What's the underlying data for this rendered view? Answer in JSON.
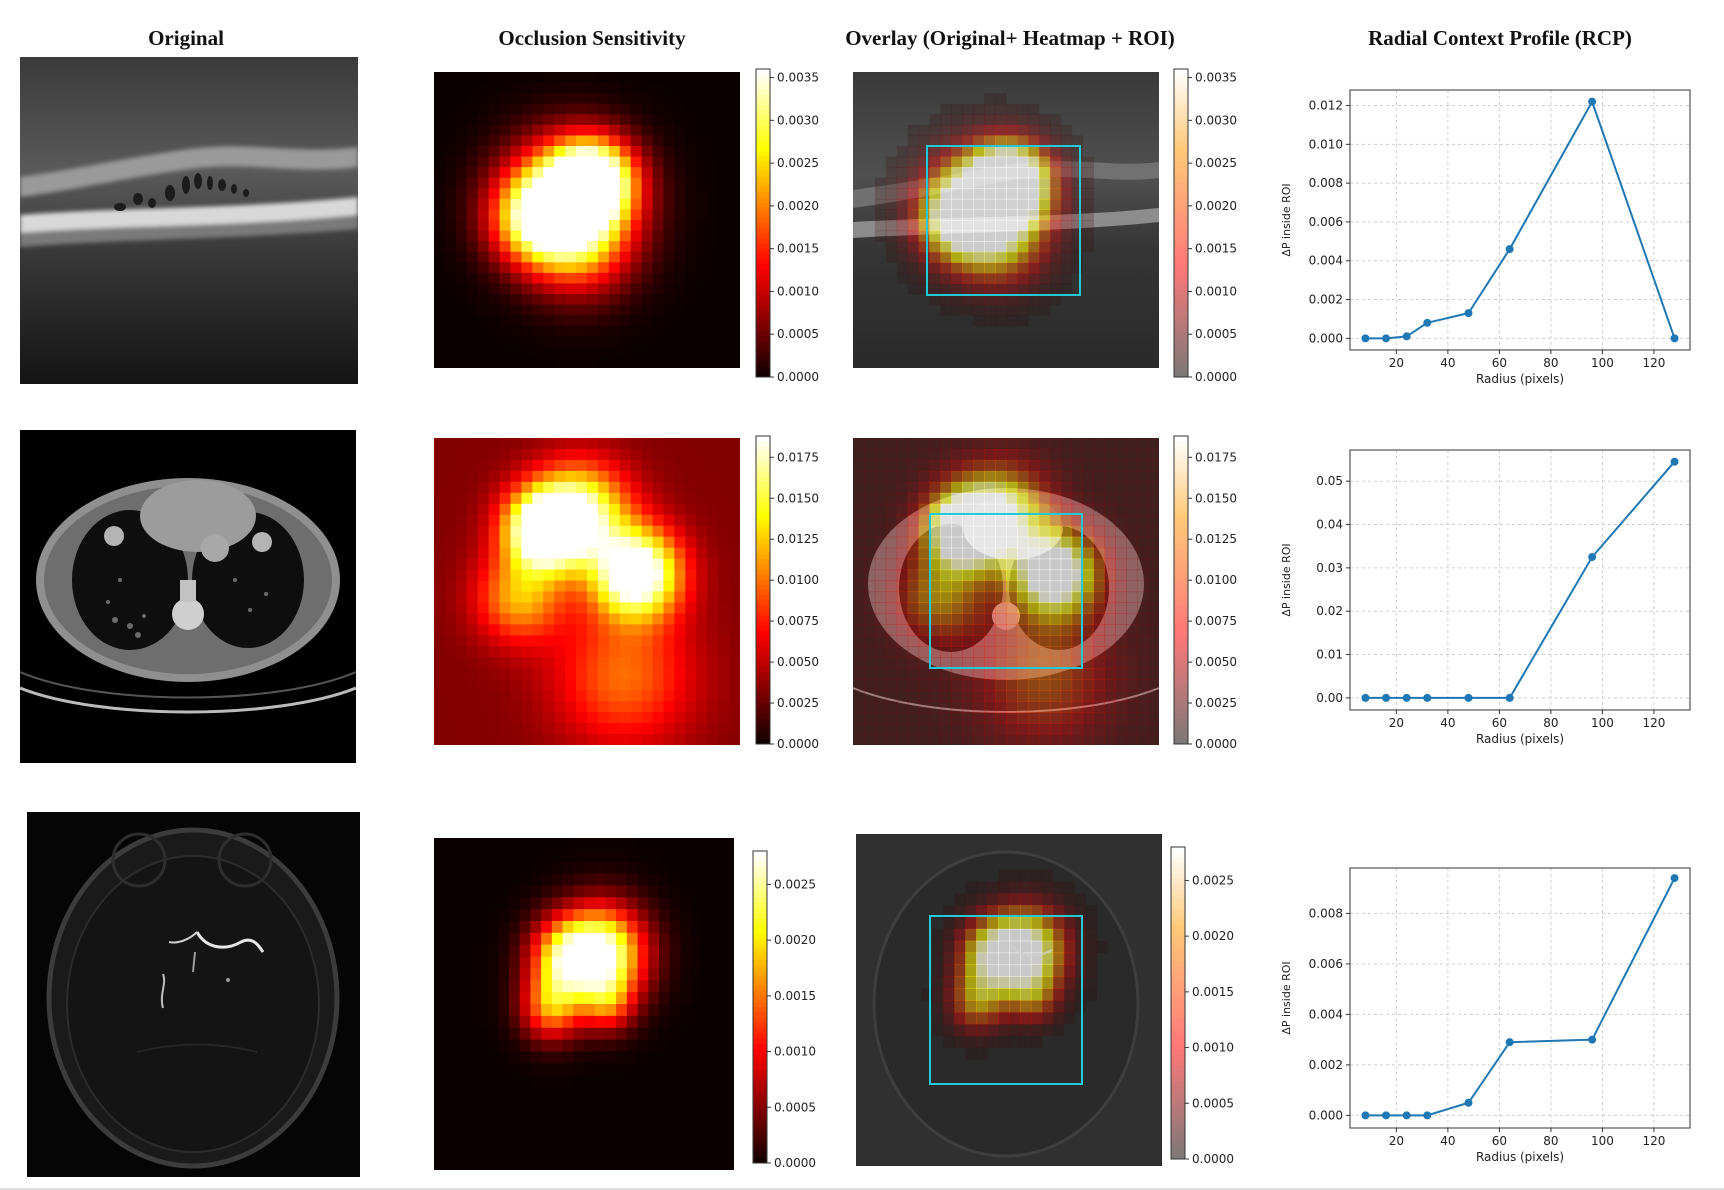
{
  "columns": {
    "original": "Original",
    "occlusion": "Occlusion Sensitivity",
    "overlay": "Overlay (Original+ Heatmap + ROI)",
    "rcp": "Radial Context Profile (RCP)"
  },
  "colors": {
    "roi": "#22c9d6",
    "line": "#1f77b4"
  },
  "rows": [
    {
      "name": "oct",
      "colorbar_ticks": [
        "0.0000",
        "0.0005",
        "0.0010",
        "0.0015",
        "0.0020",
        "0.0025",
        "0.0030",
        "0.0035"
      ],
      "colorbar_max": 0.0036,
      "blobs": [
        {
          "u": 0.44,
          "v": 0.44,
          "r": 0.14,
          "w": 1.0
        },
        {
          "u": 0.52,
          "v": 0.36,
          "r": 0.09,
          "w": 0.9
        },
        {
          "u": 0.33,
          "v": 0.5,
          "r": 0.1,
          "w": 0.55
        },
        {
          "u": 0.48,
          "v": 0.6,
          "r": 0.12,
          "w": 0.35
        }
      ]
    },
    {
      "name": "ct",
      "colorbar_ticks": [
        "0.0000",
        "0.0025",
        "0.0050",
        "0.0075",
        "0.0100",
        "0.0125",
        "0.0150",
        "0.0175"
      ],
      "colorbar_max": 0.0188,
      "blobs": [
        {
          "u": 0.36,
          "v": 0.3,
          "r": 0.09,
          "w": 1.0
        },
        {
          "u": 0.66,
          "v": 0.44,
          "r": 0.1,
          "w": 1.0
        },
        {
          "u": 0.48,
          "v": 0.24,
          "r": 0.11,
          "w": 0.7
        },
        {
          "u": 0.28,
          "v": 0.52,
          "r": 0.1,
          "w": 0.45
        },
        {
          "u": 0.62,
          "v": 0.78,
          "r": 0.16,
          "w": 0.35
        }
      ]
    },
    {
      "name": "mra",
      "colorbar_ticks": [
        "0.0000",
        "0.0005",
        "0.0010",
        "0.0015",
        "0.0020",
        "0.0025"
      ],
      "colorbar_max": 0.0028,
      "blobs": [
        {
          "u": 0.56,
          "v": 0.35,
          "r": 0.1,
          "w": 1.0
        },
        {
          "u": 0.43,
          "v": 0.36,
          "r": 0.08,
          "w": 0.6
        },
        {
          "u": 0.39,
          "v": 0.51,
          "r": 0.07,
          "w": 0.55
        },
        {
          "u": 0.58,
          "v": 0.5,
          "r": 0.06,
          "w": 0.35
        }
      ]
    }
  ],
  "chart_data": [
    {
      "type": "line",
      "title": "Radial Context Profile (RCP)",
      "xlabel": "Radius (pixels)",
      "ylabel": "ΔP inside ROI",
      "x": [
        8,
        16,
        24,
        32,
        48,
        64,
        96,
        128
      ],
      "y": [
        0.0,
        0.0,
        0.0001,
        0.0008,
        0.0013,
        0.0046,
        0.0122,
        0.0
      ],
      "xticks": [
        20,
        40,
        60,
        80,
        100,
        120
      ],
      "xtick_labels": [
        "20",
        "40",
        "60",
        "80",
        "100",
        "120"
      ],
      "yticks": [
        0,
        0.002,
        0.004,
        0.006,
        0.008,
        0.01,
        0.012
      ],
      "ytick_labels": [
        "0.000",
        "0.002",
        "0.004",
        "0.006",
        "0.008",
        "0.010",
        "0.012"
      ],
      "xlim": [
        2,
        134
      ],
      "ylim": [
        -0.0006,
        0.0128
      ],
      "grid": true
    },
    {
      "type": "line",
      "title": "Radial Context Profile (RCP)",
      "xlabel": "Radius (pixels)",
      "ylabel": "ΔP inside ROI",
      "x": [
        8,
        16,
        24,
        32,
        48,
        64,
        96,
        128
      ],
      "y": [
        0.0,
        0.0,
        0.0,
        0.0,
        0.0,
        0.0,
        0.0325,
        0.0545
      ],
      "xticks": [
        20,
        40,
        60,
        80,
        100,
        120
      ],
      "xtick_labels": [
        "20",
        "40",
        "60",
        "80",
        "100",
        "120"
      ],
      "yticks": [
        0,
        0.01,
        0.02,
        0.03,
        0.04,
        0.05
      ],
      "ytick_labels": [
        "0.00",
        "0.01",
        "0.02",
        "0.03",
        "0.04",
        "0.05"
      ],
      "xlim": [
        2,
        134
      ],
      "ylim": [
        -0.0028,
        0.0572
      ],
      "grid": true
    },
    {
      "type": "line",
      "title": "Radial Context Profile (RCP)",
      "xlabel": "Radius (pixels)",
      "ylabel": "ΔP inside ROI",
      "x": [
        8,
        16,
        24,
        32,
        48,
        64,
        96,
        128
      ],
      "y": [
        0.0,
        0.0,
        0.0,
        0.0,
        0.0005,
        0.0029,
        0.003,
        0.0094
      ],
      "xticks": [
        20,
        40,
        60,
        80,
        100,
        120
      ],
      "xtick_labels": [
        "20",
        "40",
        "60",
        "80",
        "100",
        "120"
      ],
      "yticks": [
        0,
        0.002,
        0.004,
        0.006,
        0.008
      ],
      "ytick_labels": [
        "0.000",
        "0.002",
        "0.004",
        "0.006",
        "0.008"
      ],
      "xlim": [
        2,
        134
      ],
      "ylim": [
        -0.0005,
        0.0098
      ],
      "grid": true
    }
  ]
}
